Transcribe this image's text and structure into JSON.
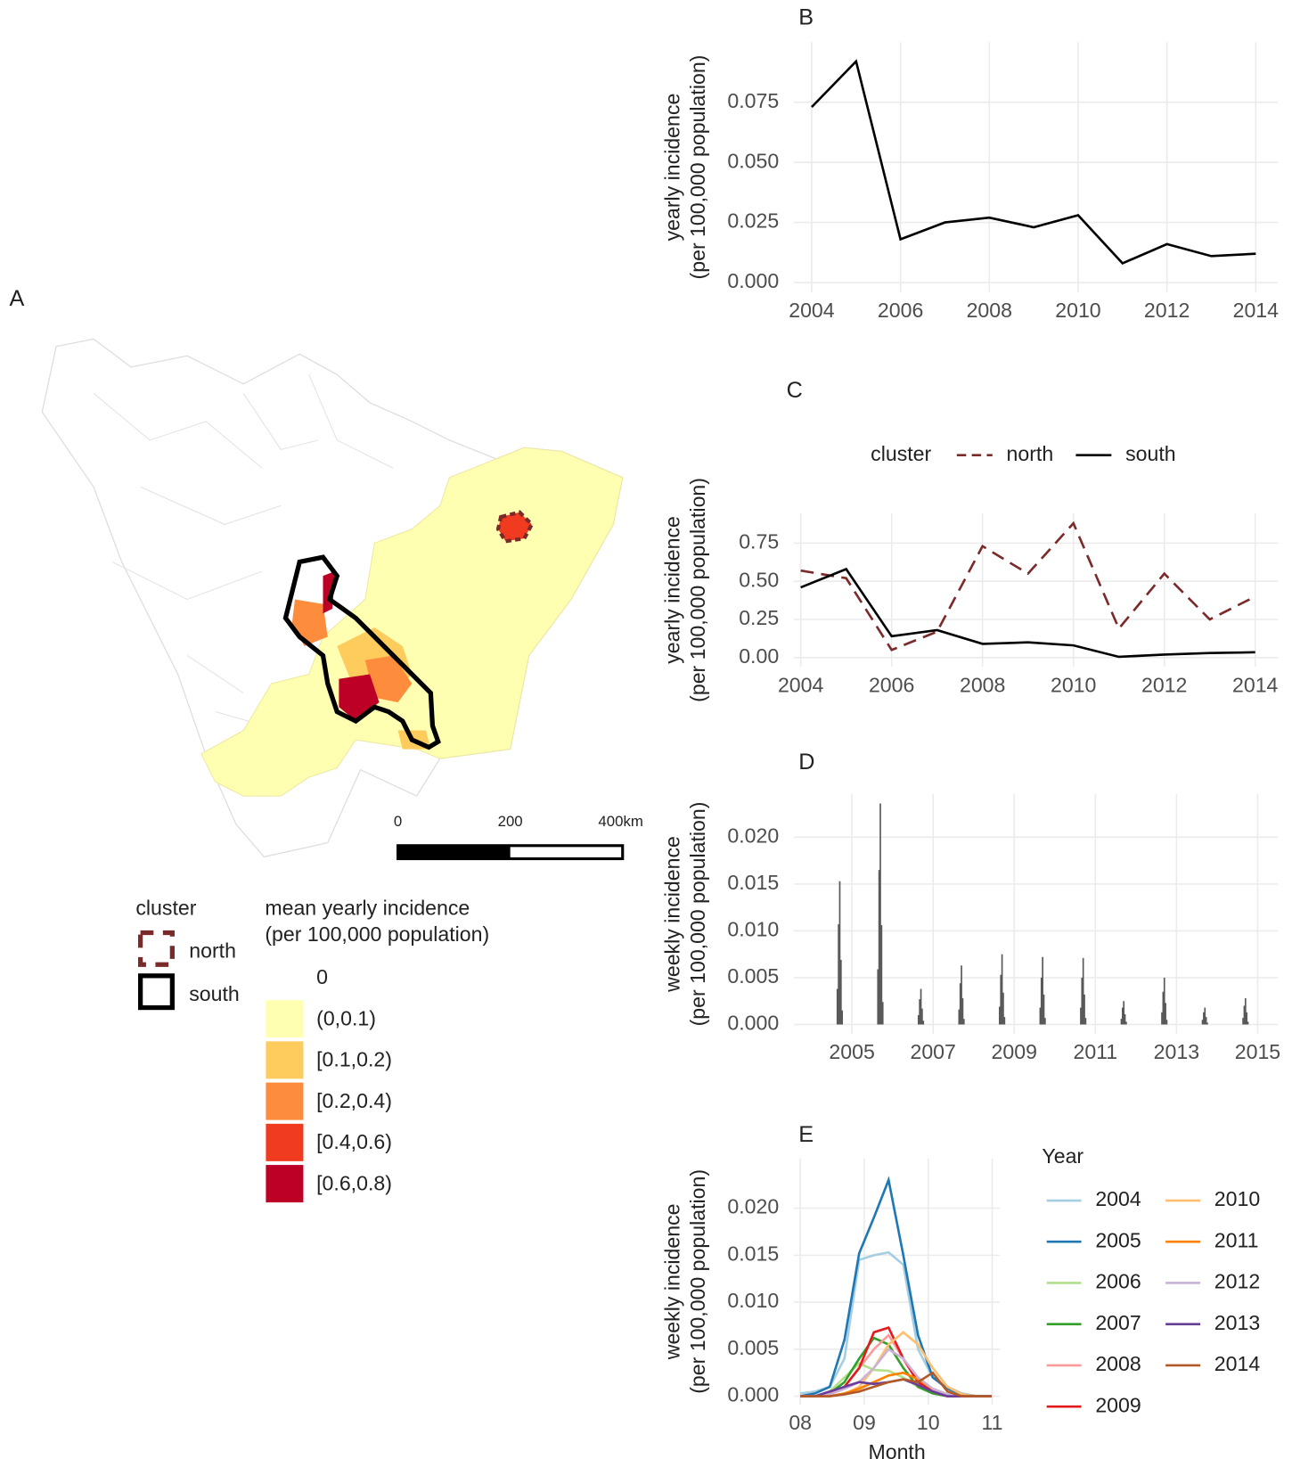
{
  "map": {
    "label": "A",
    "scale_labels": [
      "0",
      "200",
      "400km"
    ],
    "cluster_title": "cluster",
    "clusters": [
      {
        "name": "north",
        "color": "#7b2a2a",
        "linestyle": "dashed"
      },
      {
        "name": "south",
        "color": "#000000",
        "linestyle": "solid"
      }
    ],
    "fill_title": [
      "mean yearly incidence",
      "(per 100,000 population)"
    ],
    "fill_items": [
      {
        "label": "0",
        "color": "#ffffff"
      },
      {
        "label": "(0,0.1)",
        "color": "#ffffb2"
      },
      {
        "label": "[0.1,0.2)",
        "color": "#fecc5c"
      },
      {
        "label": "[0.2,0.4)",
        "color": "#fd8d3c"
      },
      {
        "label": "[0.4,0.6)",
        "color": "#f03b20"
      },
      {
        "label": "[0.6,0.8)",
        "color": "#bd0026"
      }
    ]
  },
  "chart_data": [
    {
      "type": "line",
      "label": "B",
      "ylabel": [
        "yearly incidence",
        "(per 100,000 population)"
      ],
      "x": [
        2004,
        2005,
        2006,
        2007,
        2008,
        2009,
        2010,
        2011,
        2012,
        2013,
        2014
      ],
      "values": [
        0.073,
        0.092,
        0.018,
        0.025,
        0.027,
        0.023,
        0.028,
        0.008,
        0.016,
        0.011,
        0.012
      ],
      "color": "#000000",
      "xlim": [
        2003.6,
        2014.5
      ],
      "xticks": [
        2004,
        2006,
        2008,
        2010,
        2012,
        2014
      ],
      "ylim": [
        -0.004,
        0.1
      ],
      "yticks": [
        {
          "value": 0,
          "label": "0.000"
        },
        {
          "value": 0.025,
          "label": "0.025"
        },
        {
          "value": 0.05,
          "label": "0.050"
        },
        {
          "value": 0.075,
          "label": "0.075"
        }
      ],
      "grid": true
    },
    {
      "type": "line",
      "label": "C",
      "ylabel": [
        "yearly incidence",
        "(per 100,000 population)"
      ],
      "legend_title": "cluster",
      "legend": "top",
      "x": [
        2004,
        2005,
        2006,
        2007,
        2008,
        2009,
        2010,
        2011,
        2012,
        2013,
        2014
      ],
      "series": [
        {
          "name": "north",
          "color": "#7b2a2a",
          "linestyle": "dashed",
          "values": [
            0.57,
            0.52,
            0.05,
            0.17,
            0.73,
            0.55,
            0.88,
            0.19,
            0.55,
            0.25,
            0.4
          ]
        },
        {
          "name": "south",
          "color": "#000000",
          "linestyle": "solid",
          "values": [
            0.46,
            0.58,
            0.14,
            0.18,
            0.09,
            0.1,
            0.08,
            0.005,
            0.02,
            0.03,
            0.035
          ]
        }
      ],
      "xlim": [
        2003.85,
        2014.5
      ],
      "xticks": [
        2004,
        2006,
        2008,
        2010,
        2012,
        2014
      ],
      "ylim": [
        -0.06,
        0.946
      ],
      "yticks": [
        {
          "value": 0,
          "label": "0.00"
        },
        {
          "value": 0.25,
          "label": "0.25"
        },
        {
          "value": 0.5,
          "label": "0.50"
        },
        {
          "value": 0.75,
          "label": "0.75"
        }
      ],
      "grid": true
    },
    {
      "type": "bar",
      "label": "D",
      "ylabel": [
        "weekly incidence",
        "(per 100,000 population)"
      ],
      "color": "#595959",
      "x": [
        2004.64,
        2004.67,
        2004.7,
        2004.73,
        2004.76,
        2005.64,
        2005.67,
        2005.7,
        2005.73,
        2005.76,
        2006.64,
        2006.67,
        2006.7,
        2006.73,
        2006.76,
        2007.64,
        2007.67,
        2007.7,
        2007.73,
        2007.76,
        2008.64,
        2008.67,
        2008.7,
        2008.73,
        2008.76,
        2009.64,
        2009.67,
        2009.7,
        2009.73,
        2009.76,
        2010.64,
        2010.67,
        2010.7,
        2010.73,
        2010.76,
        2011.64,
        2011.67,
        2011.7,
        2011.73,
        2011.76,
        2012.64,
        2012.67,
        2012.7,
        2012.73,
        2012.76,
        2013.64,
        2013.67,
        2013.7,
        2013.73,
        2013.76,
        2014.64,
        2014.67,
        2014.7,
        2014.73,
        2014.76
      ],
      "values": [
        0.0038,
        0.0107,
        0.0153,
        0.0069,
        0.0015,
        0.0059,
        0.0165,
        0.0236,
        0.0106,
        0.0024,
        0.001,
        0.0027,
        0.0038,
        0.0017,
        0.0004,
        0.0016,
        0.0044,
        0.0063,
        0.0028,
        0.0006,
        0.0019,
        0.0053,
        0.0075,
        0.0034,
        0.0008,
        0.0018,
        0.005,
        0.0072,
        0.0032,
        0.0007,
        0.0018,
        0.005,
        0.0071,
        0.0032,
        0.0007,
        0.0006,
        0.0018,
        0.0025,
        0.0011,
        0.0003,
        0.0013,
        0.0035,
        0.005,
        0.0023,
        0.0005,
        0.0005,
        0.0013,
        0.0018,
        0.0008,
        0.0002,
        0.0007,
        0.002,
        0.0028,
        0.0013,
        0.0003
      ],
      "xlim": [
        2003.57,
        2015.5
      ],
      "xticks": [
        2005,
        2007,
        2009,
        2011,
        2013,
        2015
      ],
      "ylim": [
        -0.001,
        0.0246
      ],
      "yticks": [
        {
          "value": 0,
          "label": "0.000"
        },
        {
          "value": 0.005,
          "label": "0.005"
        },
        {
          "value": 0.01,
          "label": "0.010"
        },
        {
          "value": 0.015,
          "label": "0.015"
        },
        {
          "value": 0.02,
          "label": "0.020"
        }
      ],
      "grid": true
    },
    {
      "type": "line",
      "label": "E",
      "ylabel": [
        "weekly incidence",
        "(per 100,000 population)"
      ],
      "xlabel": "Month",
      "legend_title": "Year",
      "legend": "right",
      "x": [
        8.0,
        8.23,
        8.46,
        8.69,
        8.92,
        9.15,
        9.38,
        9.61,
        9.84,
        10.07,
        10.3,
        10.53,
        10.76,
        10.99
      ],
      "series": [
        {
          "name": "2004",
          "color": "#a6cee3",
          "values": [
            0.0003,
            0.0005,
            0.001,
            0.004,
            0.0145,
            0.015,
            0.0153,
            0.014,
            0.005,
            0.002,
            0.001,
            0.0003,
            0,
            0
          ]
        },
        {
          "name": "2005",
          "color": "#1f78b4",
          "values": [
            0,
            0.0003,
            0.001,
            0.006,
            0.0152,
            0.019,
            0.023,
            0.015,
            0.0065,
            0.002,
            0.0008,
            0.0002,
            0,
            0
          ]
        },
        {
          "name": "2006",
          "color": "#b2df8a",
          "values": [
            0,
            0,
            0.0005,
            0.002,
            0.0035,
            0.0028,
            0.0027,
            0.002,
            0.001,
            0.0003,
            0,
            0,
            0,
            0
          ]
        },
        {
          "name": "2007",
          "color": "#33a02c",
          "values": [
            0,
            0,
            0.0003,
            0.0015,
            0.004,
            0.0062,
            0.0055,
            0.003,
            0.001,
            0.0003,
            0,
            0,
            0,
            0
          ]
        },
        {
          "name": "2008",
          "color": "#fb9a99",
          "values": [
            0,
            0,
            0.0003,
            0.001,
            0.003,
            0.005,
            0.0065,
            0.004,
            0.0015,
            0.0005,
            0,
            0,
            0,
            0
          ]
        },
        {
          "name": "2009",
          "color": "#e31a1c",
          "values": [
            0,
            0,
            0.0002,
            0.001,
            0.003,
            0.0068,
            0.0073,
            0.004,
            0.0015,
            0.0005,
            0,
            0,
            0,
            0
          ]
        },
        {
          "name": "2010",
          "color": "#fdbf6f",
          "values": [
            0,
            0,
            0,
            0.0002,
            0.001,
            0.003,
            0.0055,
            0.0068,
            0.0055,
            0.003,
            0.001,
            0.0002,
            0,
            0
          ]
        },
        {
          "name": "2011",
          "color": "#ff7f00",
          "values": [
            0,
            0,
            0,
            0.0003,
            0.0008,
            0.0015,
            0.0022,
            0.0025,
            0.0018,
            0.0008,
            0.0002,
            0,
            0,
            0
          ]
        },
        {
          "name": "2012",
          "color": "#cab2d6",
          "values": [
            0,
            0,
            0.0002,
            0.0008,
            0.0015,
            0.003,
            0.005,
            0.004,
            0.002,
            0.0008,
            0.0002,
            0,
            0,
            0
          ]
        },
        {
          "name": "2013",
          "color": "#6a3d9a",
          "values": [
            0,
            0,
            0.0005,
            0.001,
            0.0015,
            0.0013,
            0.0015,
            0.0018,
            0.0012,
            0.0005,
            0,
            0,
            0,
            0
          ]
        },
        {
          "name": "2014",
          "color": "#b15928",
          "values": [
            0,
            0,
            0,
            0.0002,
            0.0005,
            0.001,
            0.0015,
            0.0018,
            0.0015,
            0.0025,
            0.0005,
            0,
            0,
            0
          ]
        }
      ],
      "xlim": [
        7.9,
        11.12
      ],
      "xticks": [
        {
          "value": 8,
          "label": "08"
        },
        {
          "value": 9,
          "label": "09"
        },
        {
          "value": 10,
          "label": "10"
        },
        {
          "value": 11,
          "label": "11"
        }
      ],
      "ylim": [
        -0.0009,
        0.0253
      ],
      "yticks": [
        {
          "value": 0,
          "label": "0.000"
        },
        {
          "value": 0.005,
          "label": "0.005"
        },
        {
          "value": 0.01,
          "label": "0.010"
        },
        {
          "value": 0.015,
          "label": "0.015"
        },
        {
          "value": 0.02,
          "label": "0.020"
        }
      ],
      "grid": true
    }
  ]
}
